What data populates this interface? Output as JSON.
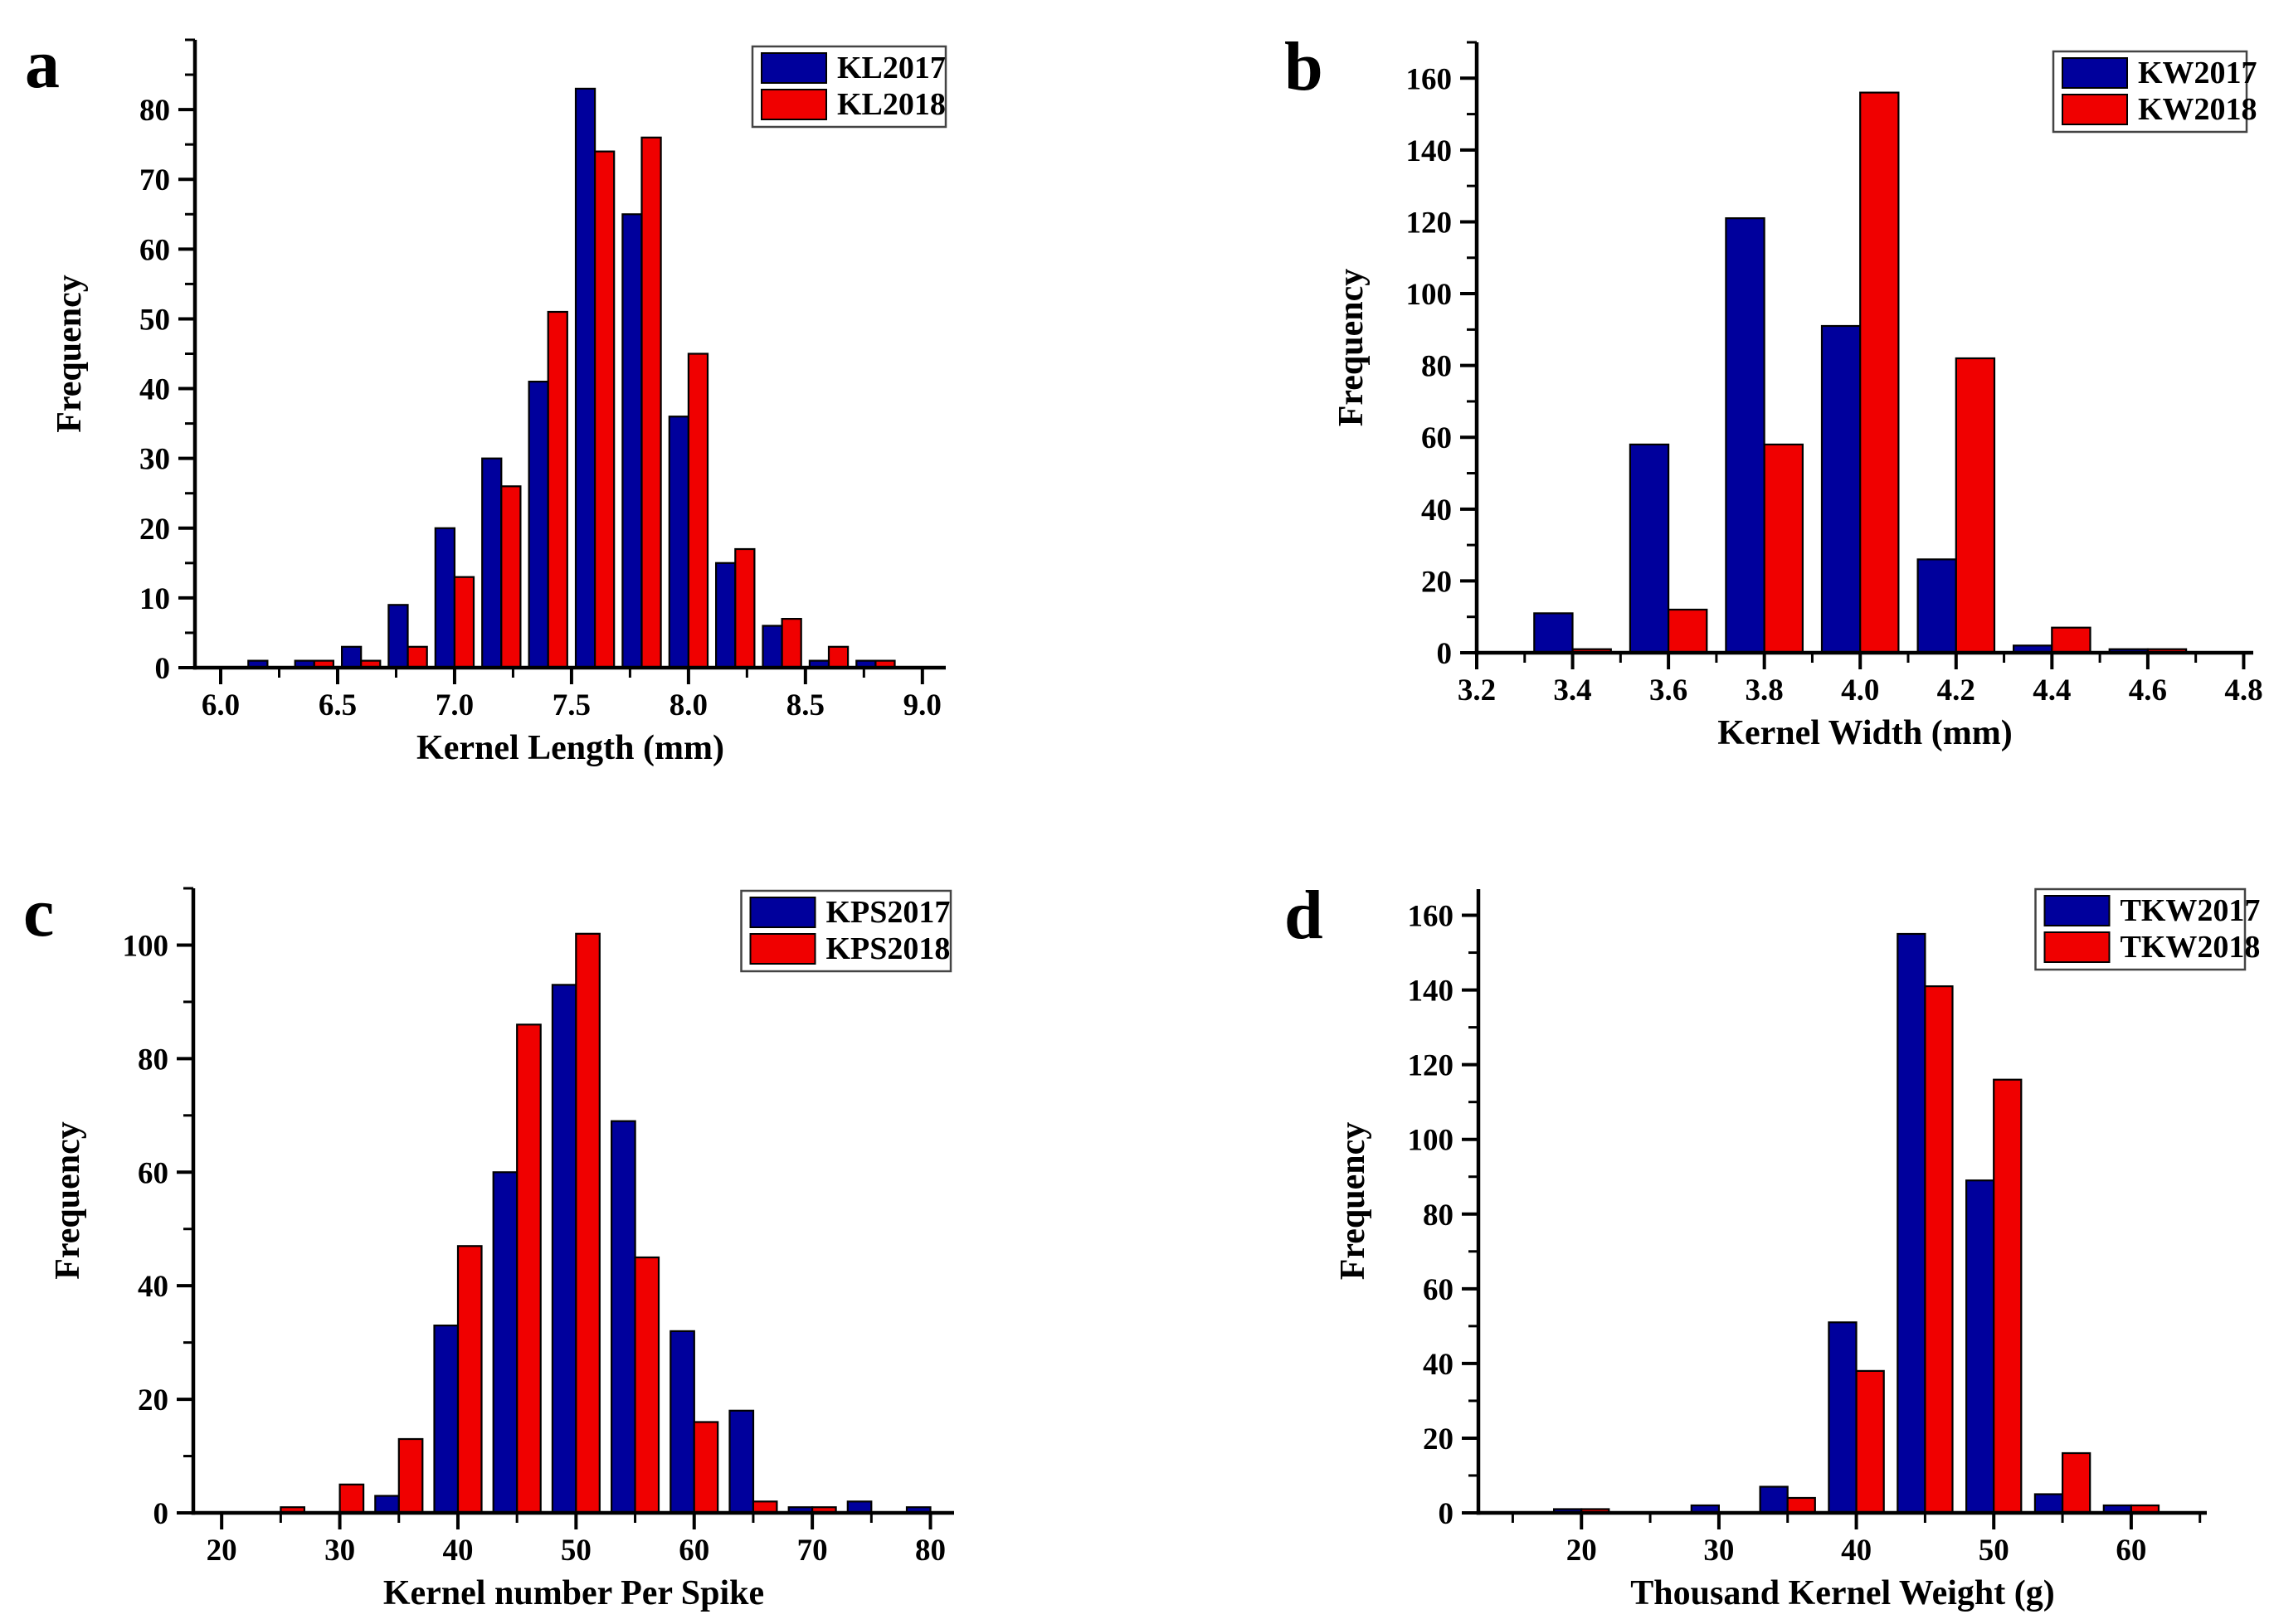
{
  "figure": {
    "background": "#ffffff",
    "bar_outline_color": "#000000",
    "axis_color": "#000000",
    "series_colors": {
      "year2017": "#00009C",
      "year2018": "#F00000"
    }
  },
  "chart_data": [
    {
      "id": "a",
      "panel_label": "a",
      "type": "bar",
      "title": "",
      "xlabel": "Kernel Length (mm)",
      "ylabel": "Frequency",
      "legend_position": "top-right",
      "grid": false,
      "xlim": [
        5.89,
        9.1
      ],
      "ylim": [
        0,
        90
      ],
      "x_ticks": [
        6.0,
        6.5,
        7.0,
        7.5,
        8.0,
        8.5,
        9.0
      ],
      "x_tick_labels": [
        "6.0",
        "6.5",
        "7.0",
        "7.5",
        "8.0",
        "8.5",
        "9.0"
      ],
      "x_minor_step": 0.25,
      "y_ticks": [
        0,
        10,
        20,
        30,
        40,
        50,
        60,
        70,
        80
      ],
      "y_tick_labels": [
        "0",
        "10",
        "20",
        "30",
        "40",
        "50",
        "60",
        "70",
        "80"
      ],
      "y_minor_step": 5,
      "bin_centers": [
        6.2,
        6.4,
        6.6,
        6.8,
        7.0,
        7.2,
        7.4,
        7.6,
        7.8,
        8.0,
        8.2,
        8.4,
        8.6,
        8.8
      ],
      "bar_width": 0.082,
      "series": [
        {
          "name": "KL2017",
          "color": "#00009C",
          "values": [
            1,
            1,
            3,
            9,
            20,
            30,
            41,
            83,
            65,
            36,
            15,
            6,
            1,
            1
          ]
        },
        {
          "name": "KL2018",
          "color": "#F00000",
          "values": [
            0,
            1,
            1,
            3,
            13,
            26,
            51,
            74,
            76,
            45,
            17,
            7,
            3,
            1
          ]
        }
      ]
    },
    {
      "id": "b",
      "panel_label": "b",
      "type": "bar",
      "title": "",
      "xlabel": "Kernel Width (mm)",
      "ylabel": "Frequency",
      "legend_position": "top-right",
      "grid": false,
      "xlim": [
        3.2,
        4.82
      ],
      "ylim": [
        0,
        170
      ],
      "x_ticks": [
        3.2,
        3.4,
        3.6,
        3.8,
        4.0,
        4.2,
        4.4,
        4.6,
        4.8
      ],
      "x_tick_labels": [
        "3.2",
        "3.4",
        "3.6",
        "3.8",
        "4.0",
        "4.2",
        "4.4",
        "4.6",
        "4.8"
      ],
      "x_minor_step": 0.1,
      "y_ticks": [
        0,
        20,
        40,
        60,
        80,
        100,
        120,
        140,
        160
      ],
      "y_tick_labels": [
        "0",
        "20",
        "40",
        "60",
        "80",
        "100",
        "120",
        "140",
        "160"
      ],
      "y_minor_step": 10,
      "bin_centers": [
        3.4,
        3.6,
        3.8,
        4.0,
        4.2,
        4.4,
        4.6
      ],
      "bar_width": 0.08,
      "series": [
        {
          "name": "KW2017",
          "color": "#00009C",
          "values": [
            11,
            58,
            121,
            91,
            26,
            2,
            1
          ]
        },
        {
          "name": "KW2018",
          "color": "#F00000",
          "values": [
            1,
            12,
            58,
            156,
            82,
            7,
            1
          ]
        }
      ]
    },
    {
      "id": "c",
      "panel_label": "c",
      "type": "bar",
      "title": "",
      "xlabel": "Kernel number Per Spike",
      "ylabel": "Frequency",
      "legend_position": "top-right",
      "grid": false,
      "xlim": [
        17.6,
        82
      ],
      "ylim": [
        0,
        110
      ],
      "x_ticks": [
        20,
        30,
        40,
        50,
        60,
        70,
        80
      ],
      "x_tick_labels": [
        "20",
        "30",
        "40",
        "50",
        "60",
        "70",
        "80"
      ],
      "x_minor_step": 5,
      "y_ticks": [
        0,
        20,
        40,
        60,
        80,
        100
      ],
      "y_tick_labels": [
        "0",
        "20",
        "40",
        "60",
        "80",
        "100"
      ],
      "y_minor_step": 10,
      "bin_centers": [
        25,
        30,
        35,
        40,
        45,
        50,
        55,
        60,
        65,
        70,
        75,
        80
      ],
      "bar_width": 2.0,
      "series": [
        {
          "name": "KPS2017",
          "color": "#00009C",
          "values": [
            0,
            0,
            3,
            33,
            60,
            93,
            69,
            32,
            18,
            1,
            2,
            1
          ]
        },
        {
          "name": "KPS2018",
          "color": "#F00000",
          "values": [
            1,
            5,
            13,
            47,
            86,
            102,
            45,
            16,
            2,
            1,
            0,
            0
          ]
        }
      ]
    },
    {
      "id": "d",
      "panel_label": "d",
      "type": "bar",
      "title": "",
      "xlabel": "Thousand Kernel Weight (g)",
      "ylabel": "Frequency",
      "legend_position": "top-right",
      "grid": false,
      "xlim": [
        12.5,
        65.5
      ],
      "ylim": [
        0,
        167
      ],
      "x_ticks": [
        20,
        30,
        40,
        50,
        60
      ],
      "x_tick_labels": [
        "20",
        "30",
        "40",
        "50",
        "60"
      ],
      "x_minor_step": 5,
      "y_ticks": [
        0,
        20,
        40,
        60,
        80,
        100,
        120,
        140,
        160
      ],
      "y_tick_labels": [
        "0",
        "20",
        "40",
        "60",
        "80",
        "100",
        "120",
        "140",
        "160"
      ],
      "y_minor_step": 10,
      "bin_centers": [
        20,
        25,
        30,
        35,
        40,
        45,
        50,
        55,
        60
      ],
      "bar_width": 2.0,
      "series": [
        {
          "name": "TKW2017",
          "color": "#00009C",
          "values": [
            1,
            0,
            2,
            7,
            51,
            155,
            89,
            5,
            2
          ]
        },
        {
          "name": "TKW2018",
          "color": "#F00000",
          "values": [
            1,
            0,
            0,
            4,
            38,
            141,
            116,
            16,
            2
          ]
        }
      ]
    }
  ]
}
